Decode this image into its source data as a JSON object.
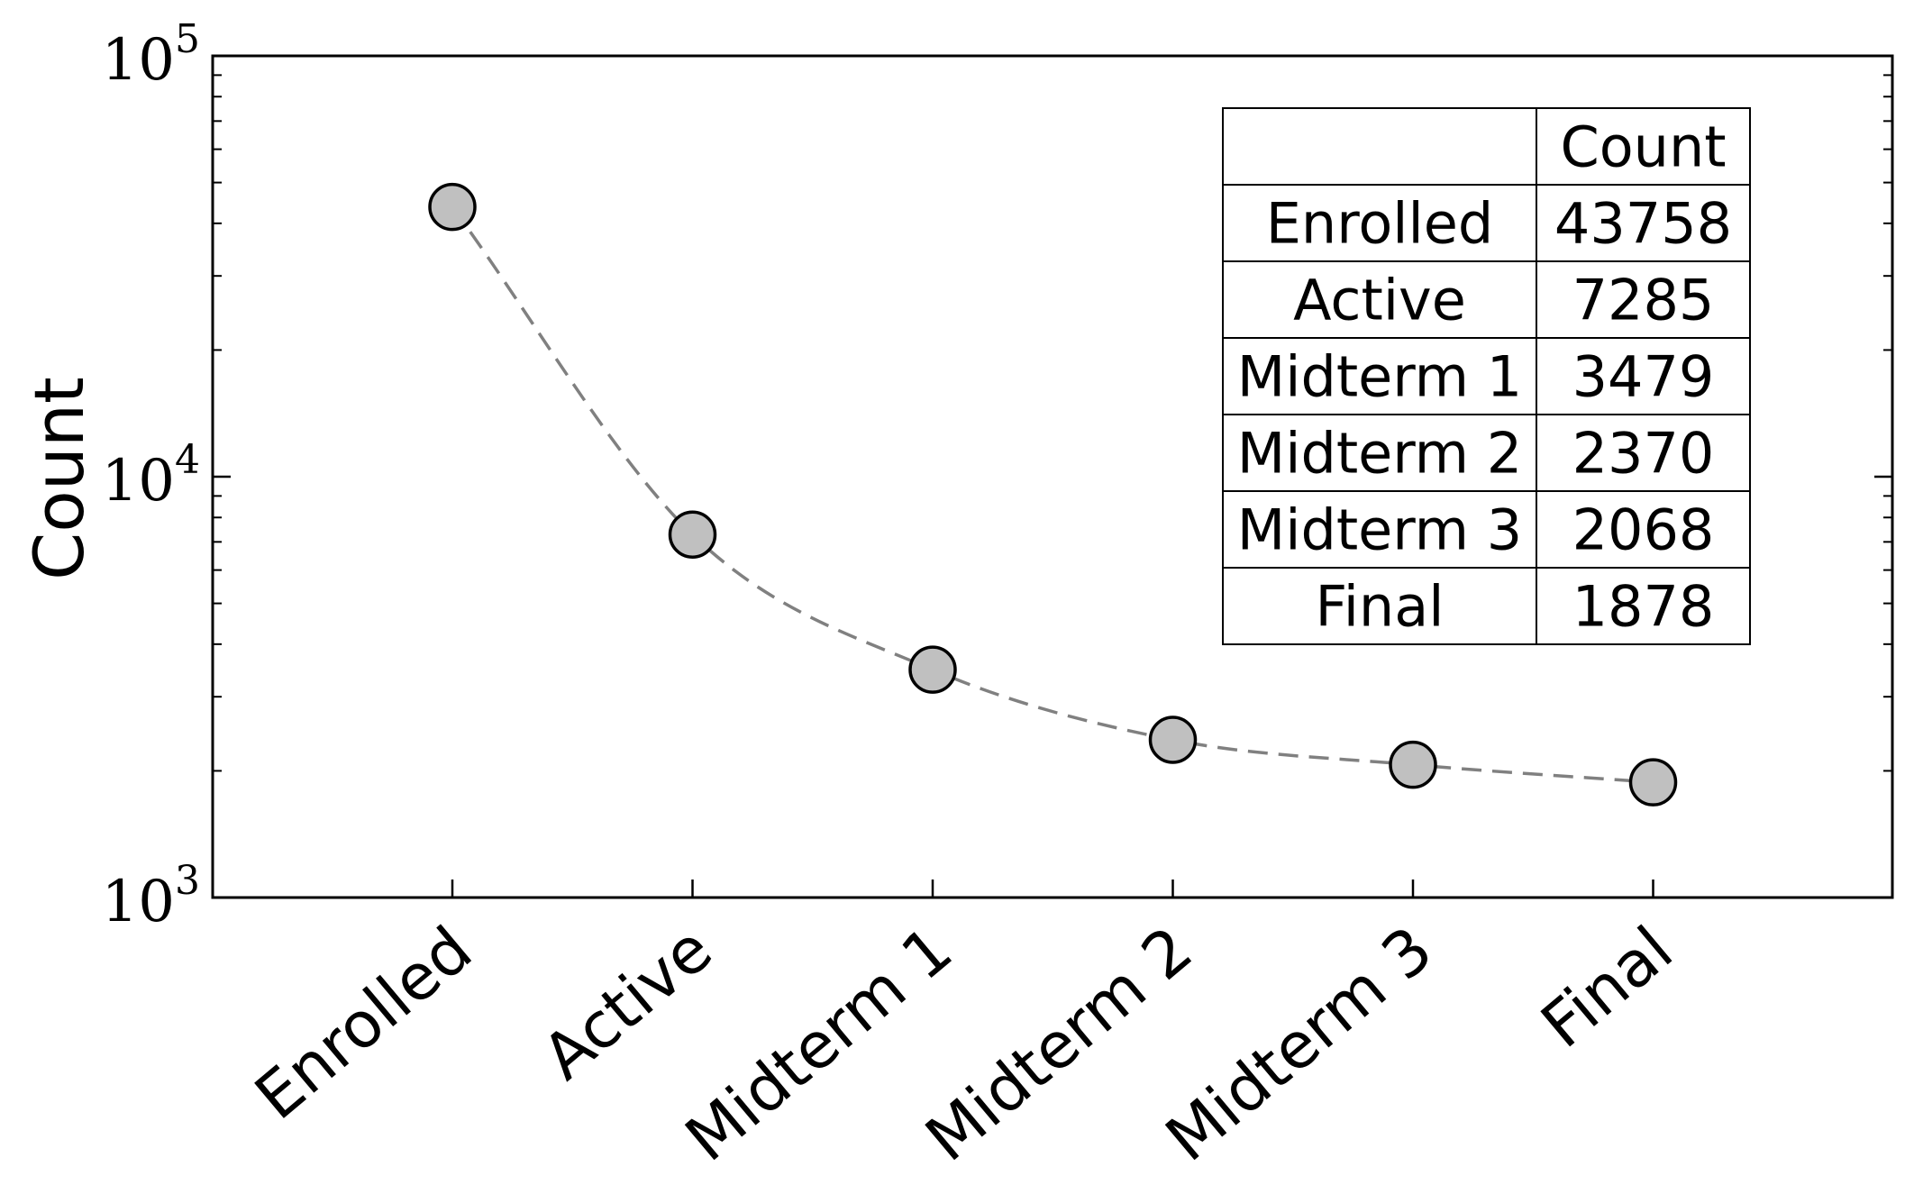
{
  "chart_data": {
    "type": "line",
    "categories": [
      "Enrolled",
      "Active",
      "Midterm 1",
      "Midterm 2",
      "Midterm 3",
      "Final"
    ],
    "values": [
      43758,
      7285,
      3479,
      2370,
      2068,
      1878
    ],
    "ylabel": "Count",
    "yscale": "log",
    "ylim": [
      1000,
      100000
    ],
    "yticks": [
      {
        "value": 1000,
        "base": "10",
        "exp": "3"
      },
      {
        "value": 10000,
        "base": "10",
        "exp": "4"
      },
      {
        "value": 100000,
        "base": "10",
        "exp": "5"
      }
    ],
    "grid": false,
    "line_style": "dashed",
    "line_color": "#808080",
    "marker_fill": "#c0c0c0",
    "marker_edge": "#000000",
    "table": {
      "header": [
        "",
        "Count"
      ],
      "rows": [
        [
          "Enrolled",
          "43758"
        ],
        [
          "Active",
          "7285"
        ],
        [
          "Midterm 1",
          "3479"
        ],
        [
          "Midterm 2",
          "2370"
        ],
        [
          "Midterm 3",
          "2068"
        ],
        [
          "Final",
          "1878"
        ]
      ]
    }
  }
}
